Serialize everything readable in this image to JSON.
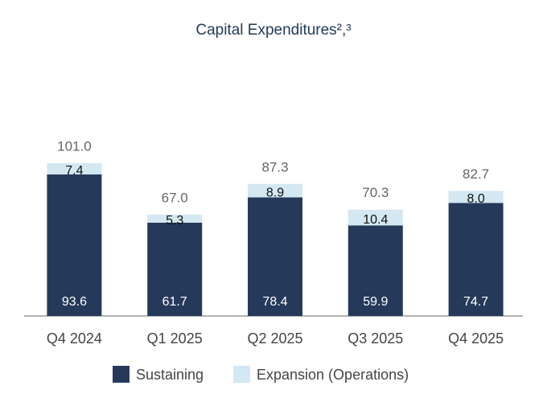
{
  "chart_data": {
    "type": "stacked_bar",
    "title": "Capital Expenditures²,³",
    "categories": [
      "Q4 2024",
      "Q1 2025",
      "Q2 2025",
      "Q3 2025",
      "Q4 2025"
    ],
    "series": [
      {
        "name": "Sustaining",
        "color": "#253a5a",
        "values": [
          93.6,
          61.7,
          78.4,
          59.9,
          74.7
        ]
      },
      {
        "name": "Expansion (Operations)",
        "color": "#d3e8f2",
        "values": [
          7.4,
          5.3,
          8.9,
          10.4,
          8
        ],
        "value_labels": [
          "7.4",
          "5.3",
          "8.9",
          "10.4",
          "8.0"
        ]
      }
    ],
    "totals": [
      101,
      67,
      87.3,
      70.3,
      82.7
    ],
    "total_labels": [
      "101.0",
      "67.0",
      "87.3",
      "70.3",
      "82.7"
    ]
  }
}
